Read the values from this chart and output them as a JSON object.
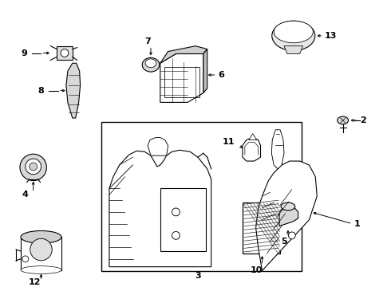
{
  "background_color": "#ffffff",
  "line_color": "#000000",
  "lw": 0.8,
  "fig_w": 4.9,
  "fig_h": 3.6,
  "dpi": 100
}
